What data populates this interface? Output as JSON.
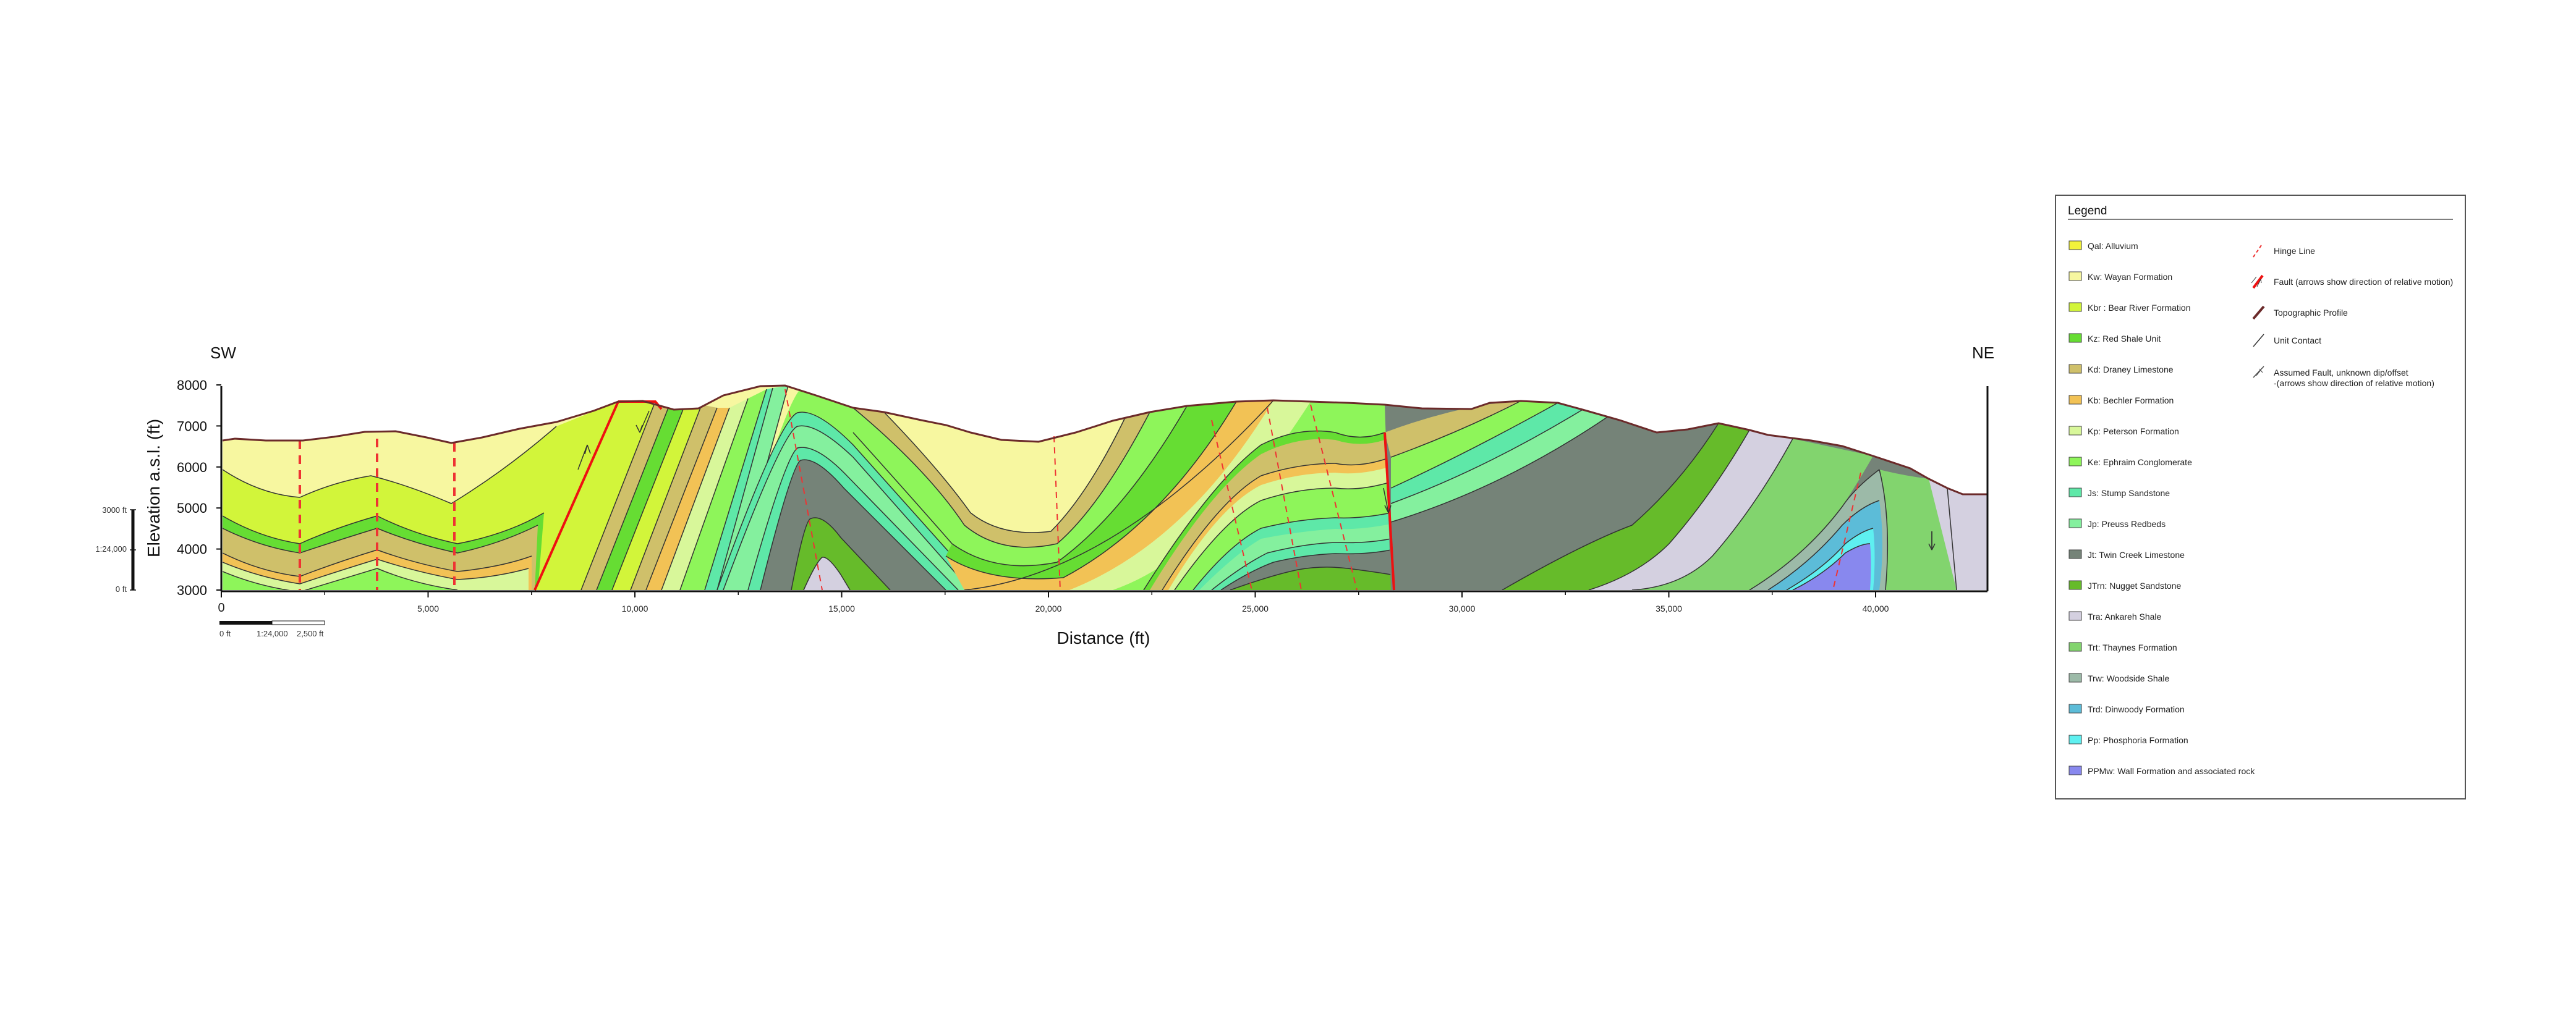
{
  "section": {
    "left_label": "SW",
    "right_label": "NE",
    "ylabel": "Elevation a.s.l. (ft)",
    "xlabel": "Distance (ft)",
    "yticks": [
      "8000",
      "7000",
      "6000",
      "5000",
      "4000",
      "3000"
    ],
    "xticks": [
      "0",
      "5,000",
      "10,000",
      "15,000",
      "20,000",
      "25,000",
      "30,000",
      "35,000",
      "40,000"
    ],
    "vscale": {
      "top": "3000 ft",
      "mid": "1:24,000",
      "bottom": "0 ft"
    },
    "hscale": {
      "left": "0 ft",
      "mid": "1:24,000",
      "right": "2,500 ft"
    }
  },
  "legend": {
    "title": "Legend",
    "units": [
      {
        "label": "Qal: Alluvium",
        "color": "#f2f23a"
      },
      {
        "label": "Kw: Wayan Formation",
        "color": "#f7f7a0"
      },
      {
        "label": "Kbr : Bear River Formation",
        "color": "#d2f53a"
      },
      {
        "label": "Kz: Red Shale Unit",
        "color": "#66dd33"
      },
      {
        "label": "Kd: Draney Limestone",
        "color": "#cfc06a"
      },
      {
        "label": "Kb: Bechler Formation",
        "color": "#f2c255"
      },
      {
        "label": "Kp: Peterson Formation",
        "color": "#d8f79a"
      },
      {
        "label": "Ke: Ephraim Conglomerate",
        "color": "#8ef55a"
      },
      {
        "label": "Js: Stump Sandstone",
        "color": "#5ee8a8"
      },
      {
        "label": "Jp: Preuss Redbeds",
        "color": "#84f09e"
      },
      {
        "label": "Jt: Twin Creek Limestone",
        "color": "#758378"
      },
      {
        "label": "JTrn: Nugget Sandstone",
        "color": "#66bb2a"
      },
      {
        "label": "Tra: Ankareh Shale",
        "color": "#d4d0e0"
      },
      {
        "label": "Trt: Thaynes Formation",
        "color": "#82d46e"
      },
      {
        "label": "Trw: Woodside Shale",
        "color": "#9cbaa8"
      },
      {
        "label": "Trd: Dinwoody Formation",
        "color": "#5cbcd8"
      },
      {
        "label": "Pp: Phosphoria Formation",
        "color": "#5ef0f0"
      },
      {
        "label": "PPMw: Wall Formation and associated rock",
        "color": "#8888ee"
      }
    ],
    "symbols": [
      {
        "label": "Hinge Line",
        "icon": "hinge-line-icon"
      },
      {
        "label": "Fault (arrows show direction of relative motion)",
        "icon": "fault-icon"
      },
      {
        "label": "Topographic Profile",
        "icon": "topographic-profile-icon"
      },
      {
        "label": "Unit Contact",
        "icon": "unit-contact-icon"
      },
      {
        "label": "Assumed Fault, unknown dip/offset",
        "label2": "-(arrows show direction of relative motion)",
        "icon": "assumed-fault-icon"
      }
    ]
  },
  "colors": {
    "topo": "#6b2a2a",
    "fault": "#ee1111",
    "hinge": "#ee3333",
    "contact": "#333333"
  }
}
